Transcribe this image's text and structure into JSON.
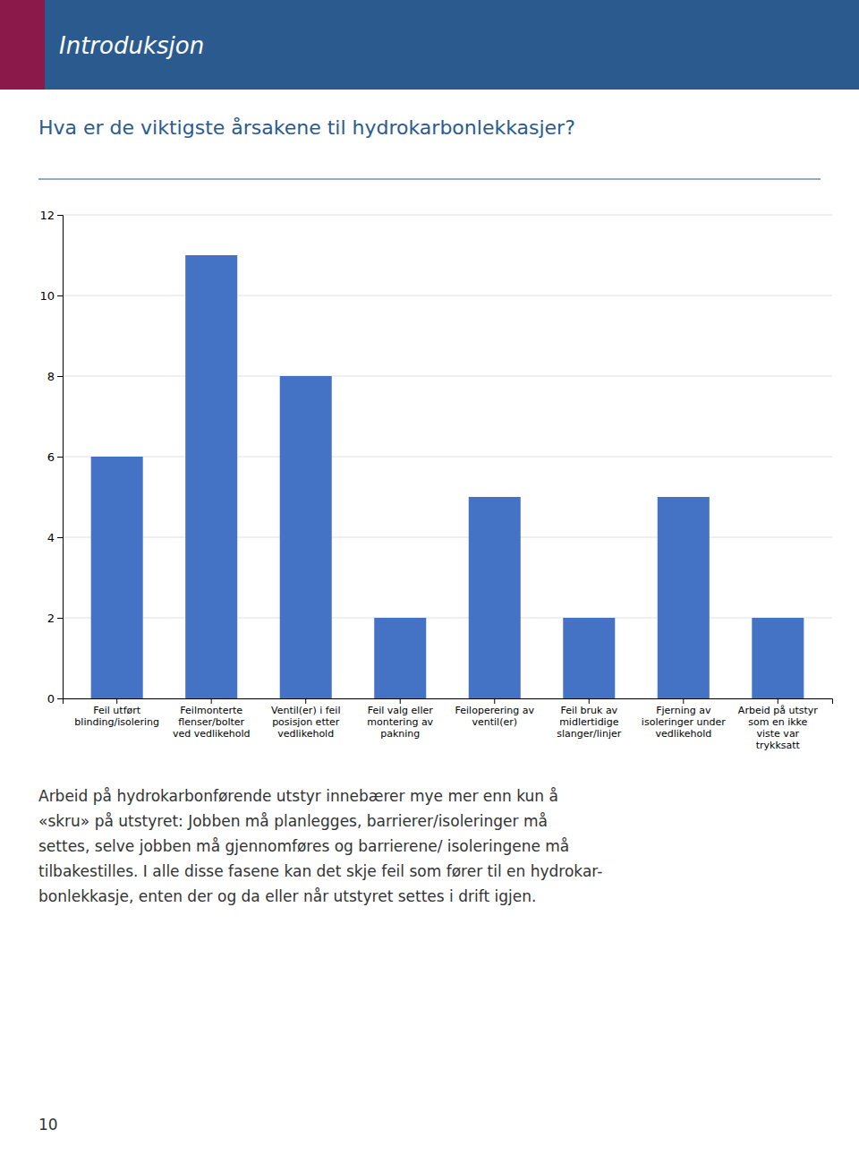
{
  "chart_data": {
    "type": "bar",
    "title": "Hva er de viktigste årsakene til hydrokarbonlekkasjer?",
    "categories": [
      "Feil utført\nblinding/isolering",
      "Feilmonterte\nflenser/bolter\nved vedlikehold",
      "Ventil(er) i feil\nposisjon etter\nvedlikehold",
      "Feil valg eller\nmontering av\npakning",
      "Feiloperering av\nventil(er)",
      "Feil bruk av\nmidlertidige\nslanger/linjer",
      "Fjerning av\nisoleringer under\nvedlikehold",
      "Arbeid på utstyr\nsom en ikke\nviste var\ntrykksatt"
    ],
    "values": [
      6,
      11,
      8,
      2,
      5,
      2,
      5,
      2
    ],
    "color": "#4472C4",
    "ylim": [
      0,
      12
    ],
    "yticks": [
      0,
      2,
      4,
      6,
      8,
      10,
      12
    ],
    "grid": true,
    "annotations": [
      "Introduksjon",
      "Arbeid på hydrokarbonførende utstyr innebærer mye mer enn kun å",
      "«skru» på utstyret: Jobben må planlegges, barrierer/isoleringer må",
      "settes, selve jobben må gjennomføres og barrierene/ isoleringene må",
      "tilbakestilles. I alle disse fasene kan det skje feil som fører til en hydrokar-",
      "bonlekkasje, enten der og da eller når utstyret settes i drift igjen.",
      "10"
    ]
  }
}
